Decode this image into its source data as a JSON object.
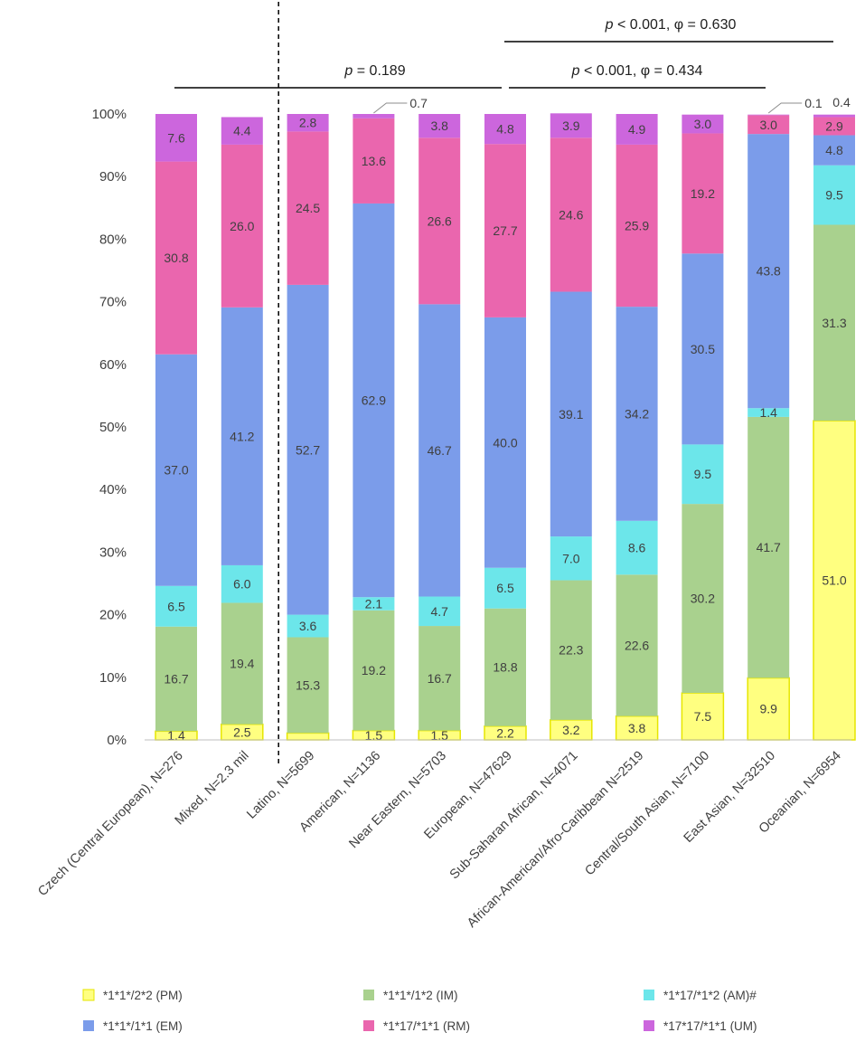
{
  "chart_data": {
    "type": "bar",
    "stacked": true,
    "categories": [
      "Czech (Central European), N=276",
      "Mixed, N=2.3 mil",
      "Latino, N=5699",
      "American, N=1136",
      "Near Eastern, N=5703",
      "European, N=47629",
      "Sub-Saharan African, N=4071",
      "African-American/Afro-Caribbean N=2519",
      "Central/South Asian, N=7100",
      "East Asian, N=32510",
      "Oceanian, N=6954"
    ],
    "series": [
      {
        "name": "*1*1*/2*2 (PM)",
        "color": "#FFFF80",
        "border": "#E6E600",
        "values": [
          1.4,
          2.5,
          1.1,
          1.5,
          1.5,
          2.2,
          3.2,
          3.8,
          7.5,
          9.9,
          51.0
        ]
      },
      {
        "name": "*1*1*/1*2 (IM)",
        "color": "#A9D18E",
        "values": [
          16.7,
          19.4,
          15.3,
          19.2,
          16.7,
          18.8,
          22.3,
          22.6,
          30.2,
          41.7,
          31.3
        ]
      },
      {
        "name": "*1*17/*1*2 (AM)#",
        "color": "#6CE6EA",
        "values": [
          6.5,
          6.0,
          3.6,
          2.1,
          4.7,
          6.5,
          7.0,
          8.6,
          9.5,
          1.4,
          9.5
        ]
      },
      {
        "name": "*1*1*/1*1 (EM)",
        "color": "#7B9CEA",
        "values": [
          37.0,
          41.2,
          52.7,
          62.9,
          46.7,
          40.0,
          39.1,
          34.2,
          30.5,
          43.8,
          4.8
        ]
      },
      {
        "name": "*1*17/*1*1 (RM)",
        "color": "#EA66AE",
        "values": [
          30.8,
          26.0,
          24.5,
          13.6,
          26.6,
          27.7,
          24.6,
          25.9,
          19.2,
          3.0,
          2.9
        ]
      },
      {
        "name": "*17*17/*1*1 (UM)",
        "color": "#CC66DD",
        "values": [
          7.6,
          4.4,
          2.8,
          0.7,
          3.8,
          4.8,
          3.9,
          4.9,
          3.0,
          0.1,
          0.4
        ]
      }
    ],
    "ylim": [
      0,
      100
    ],
    "yticks": [
      "0%",
      "10%",
      "20%",
      "30%",
      "40%",
      "50%",
      "60%",
      "70%",
      "80%",
      "90%",
      "100%"
    ],
    "annotations": {
      "p_latino_european": "p = 0.189",
      "p_african_eastasian": "p < 0.001, φ = 0.434",
      "p_african_oceanian": "p < 0.001, φ = 0.630"
    },
    "divider_after_category_index": 1,
    "legend_position": "bottom"
  }
}
